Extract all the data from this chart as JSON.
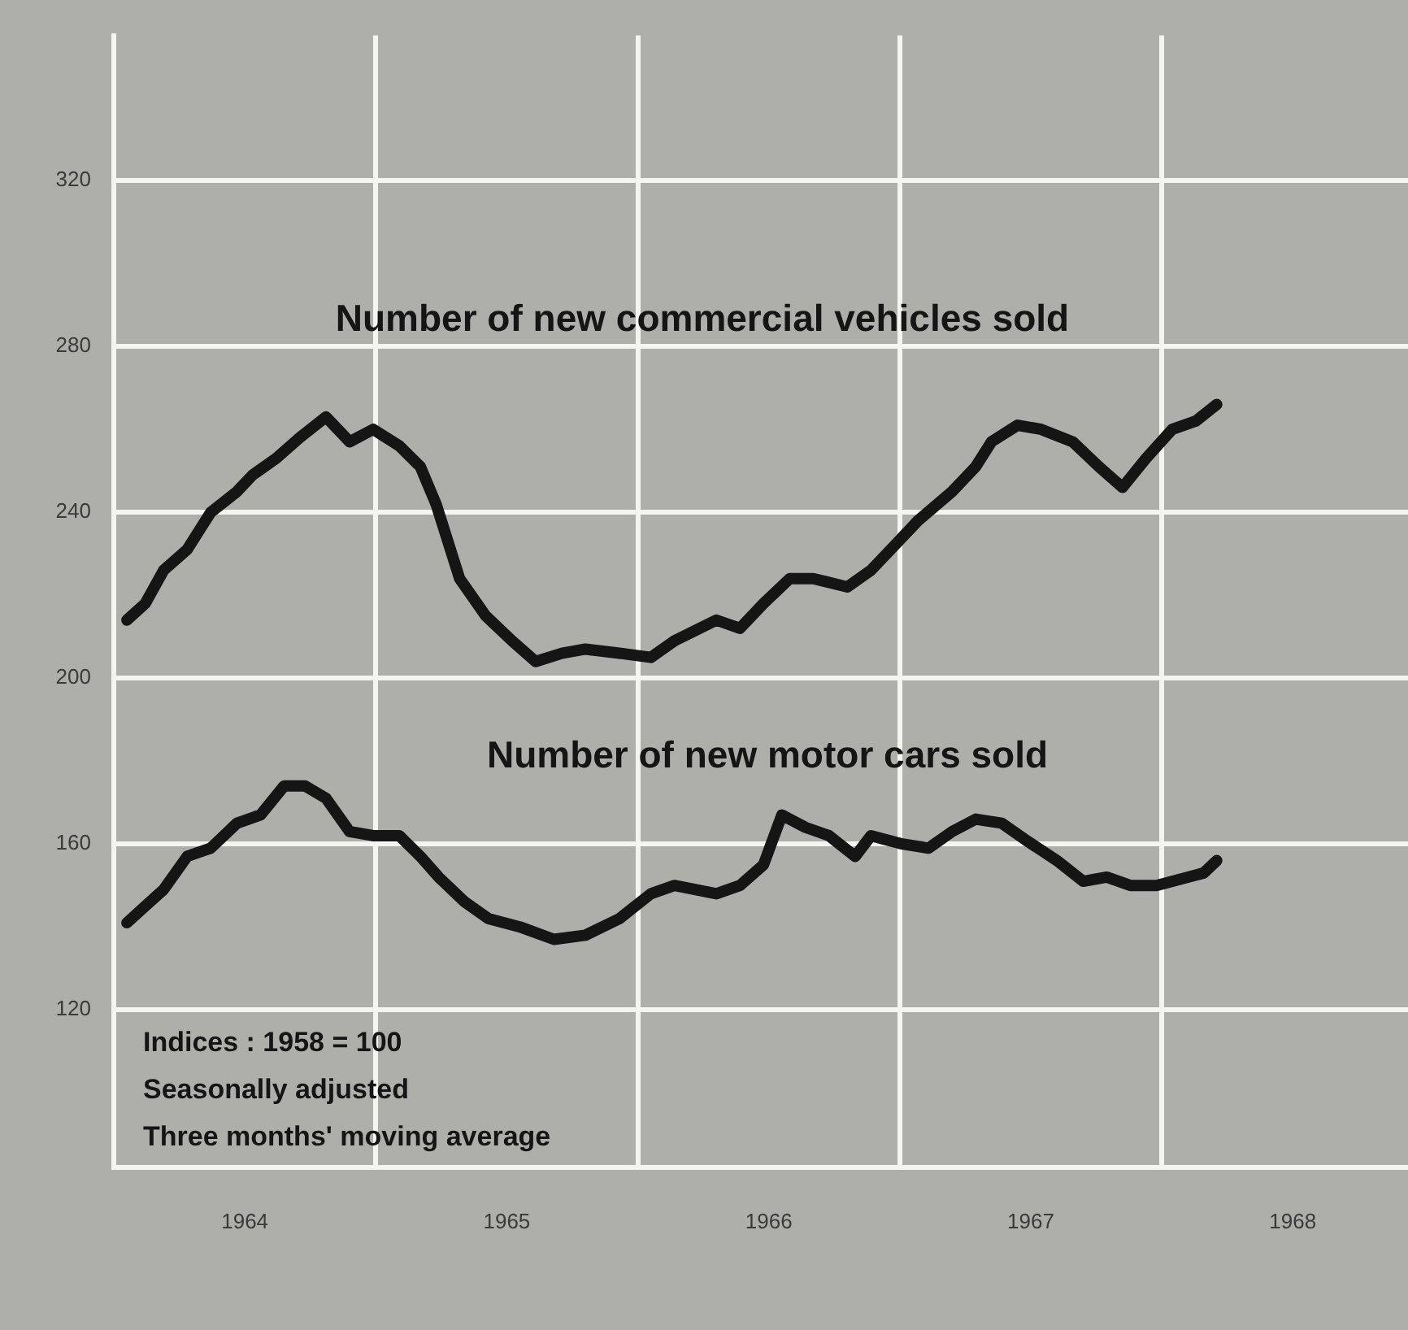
{
  "chart_data": {
    "type": "line",
    "annotations": [
      "Indices : 1958 = 100",
      "Seasonally adjusted",
      "Three months' moving average"
    ],
    "xlim": [
      1964,
      1968.94
    ],
    "xticks": [
      {
        "value": 1964,
        "label": null
      },
      {
        "value": 1964.5,
        "label": "1964"
      },
      {
        "value": 1965,
        "label": null
      },
      {
        "value": 1965.5,
        "label": "1965"
      },
      {
        "value": 1966,
        "label": null
      },
      {
        "value": 1966.5,
        "label": "1966"
      },
      {
        "value": 1967,
        "label": null
      },
      {
        "value": 1967.5,
        "label": "1967"
      },
      {
        "value": 1968,
        "label": null
      },
      {
        "value": 1968.5,
        "label": "1968"
      }
    ],
    "ylim": [
      82,
      355
    ],
    "yticks": [
      120,
      160,
      200,
      240,
      280,
      320
    ],
    "grid": true,
    "legend": false,
    "marker": "none",
    "line_style": "solid",
    "series": [
      {
        "name": "Number of new commercial vehicles sold",
        "color": "#151515",
        "x": [
          1964.05,
          1964.12,
          1964.19,
          1964.28,
          1964.37,
          1964.47,
          1964.53,
          1964.62,
          1964.71,
          1964.81,
          1964.9,
          1964.99,
          1965.09,
          1965.17,
          1965.23,
          1965.32,
          1965.42,
          1965.52,
          1965.61,
          1965.71,
          1965.8,
          1965.93,
          1966.05,
          1966.14,
          1966.3,
          1966.39,
          1966.48,
          1966.58,
          1966.67,
          1966.8,
          1966.89,
          1966.98,
          1967.07,
          1967.2,
          1967.29,
          1967.35,
          1967.45,
          1967.54,
          1967.66,
          1967.76,
          1967.85,
          1967.94,
          1968.04,
          1968.13,
          1968.21
        ],
        "values": [
          214,
          218,
          226,
          231,
          240,
          245,
          249,
          253,
          258,
          263,
          257,
          260,
          256,
          251,
          242,
          224,
          215,
          209,
          204,
          206,
          207,
          206,
          205,
          209,
          214,
          212,
          218,
          224,
          224,
          222,
          226,
          232,
          238,
          245,
          251,
          257,
          261,
          260,
          257,
          251,
          246,
          253,
          260,
          262,
          266
        ]
      },
      {
        "name": "Number of new motor cars sold",
        "color": "#151515",
        "x": [
          1964.05,
          1964.12,
          1964.19,
          1964.28,
          1964.37,
          1964.47,
          1964.56,
          1964.65,
          1964.73,
          1964.81,
          1964.9,
          1964.99,
          1965.09,
          1965.17,
          1965.24,
          1965.34,
          1965.43,
          1965.55,
          1965.68,
          1965.8,
          1965.93,
          1966.05,
          1966.14,
          1966.3,
          1966.39,
          1966.48,
          1966.55,
          1966.64,
          1966.73,
          1966.83,
          1966.89,
          1967.01,
          1967.11,
          1967.2,
          1967.29,
          1967.39,
          1967.48,
          1967.6,
          1967.7,
          1967.79,
          1967.88,
          1967.98,
          1968.1,
          1968.16,
          1968.21
        ],
        "values": [
          141,
          145,
          149,
          157,
          159,
          165,
          167,
          174,
          174,
          171,
          163,
          162,
          162,
          157,
          152,
          146,
          142,
          140,
          137,
          138,
          142,
          148,
          150,
          148,
          150,
          155,
          167,
          164,
          162,
          157,
          162,
          160,
          159,
          163,
          166,
          165,
          161,
          156,
          151,
          152,
          150,
          150,
          152,
          153,
          156
        ]
      }
    ]
  }
}
